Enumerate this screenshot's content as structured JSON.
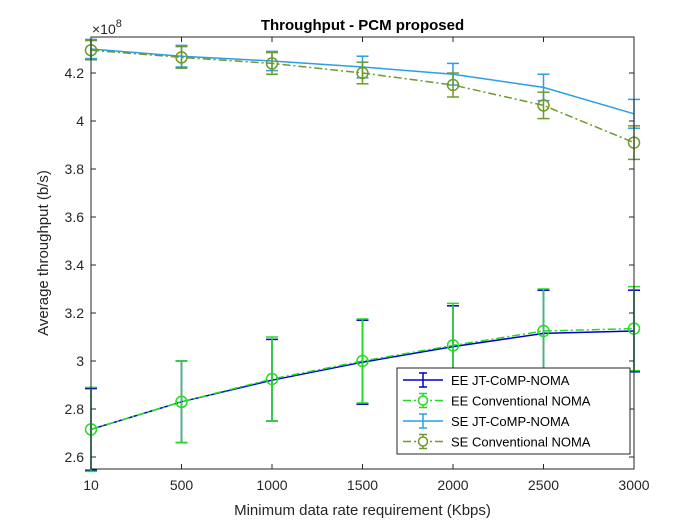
{
  "chart_data": {
    "type": "line",
    "title": "Throughput - PCM proposed",
    "xlabel": "Minimum data rate requirement (Kbps)",
    "ylabel": "Average throughput (b/s)",
    "y_exponent_label": "×10",
    "y_exponent_power": "8",
    "x_scale": "categorical-evenly-spaced",
    "categories": [
      "10",
      "500",
      "1000",
      "1500",
      "2000",
      "2500",
      "3000"
    ],
    "ylim": [
      2.55,
      4.35
    ],
    "y_ticks": [
      2.6,
      2.8,
      3.0,
      3.2,
      3.4,
      3.6,
      3.8,
      4.0,
      4.2
    ],
    "y_tick_labels": [
      "2.6",
      "2.8",
      "3",
      "3.2",
      "3.4",
      "3.6",
      "3.8",
      "4",
      "4.2"
    ],
    "y_unit_multiplier": 100000000,
    "grid": false,
    "legend_position": "bottom-right",
    "series": [
      {
        "name": "EE JT-CoMP-NOMA",
        "color": "#0000cc",
        "line_style": "solid",
        "marker": "none",
        "values": [
          2.715,
          2.83,
          2.92,
          2.995,
          3.06,
          3.115,
          3.125
        ],
        "err_low": [
          0.17,
          0.17,
          0.17,
          0.175,
          0.17,
          0.18,
          0.17
        ],
        "err_high": [
          0.17,
          0.17,
          0.17,
          0.175,
          0.17,
          0.18,
          0.17
        ]
      },
      {
        "name": "EE Conventional NOMA",
        "color": "#22dd22",
        "line_style": "dashdot",
        "marker": "circle",
        "values": [
          2.715,
          2.83,
          2.925,
          3.0,
          3.065,
          3.125,
          3.135
        ],
        "err_low": [
          0.175,
          0.17,
          0.175,
          0.175,
          0.175,
          0.175,
          0.175
        ],
        "err_high": [
          0.175,
          0.17,
          0.175,
          0.175,
          0.175,
          0.175,
          0.175
        ]
      },
      {
        "name": "SE JT-CoMP-NOMA",
        "color": "#2a9fe8",
        "line_style": "solid",
        "marker": "none",
        "values": [
          4.3,
          4.27,
          4.25,
          4.225,
          4.195,
          4.14,
          4.03
        ],
        "err_low": [
          0.04,
          0.045,
          0.04,
          0.045,
          0.045,
          0.055,
          0.06
        ],
        "err_high": [
          0.04,
          0.045,
          0.04,
          0.045,
          0.045,
          0.055,
          0.06
        ]
      },
      {
        "name": "SE Conventional NOMA",
        "color": "#6d9a2a",
        "line_style": "dashdot",
        "marker": "circle",
        "values": [
          4.295,
          4.265,
          4.24,
          4.2,
          4.15,
          4.065,
          3.91
        ],
        "err_low": [
          0.04,
          0.045,
          0.045,
          0.045,
          0.05,
          0.055,
          0.07
        ],
        "err_high": [
          0.04,
          0.045,
          0.045,
          0.045,
          0.05,
          0.055,
          0.07
        ]
      }
    ]
  }
}
